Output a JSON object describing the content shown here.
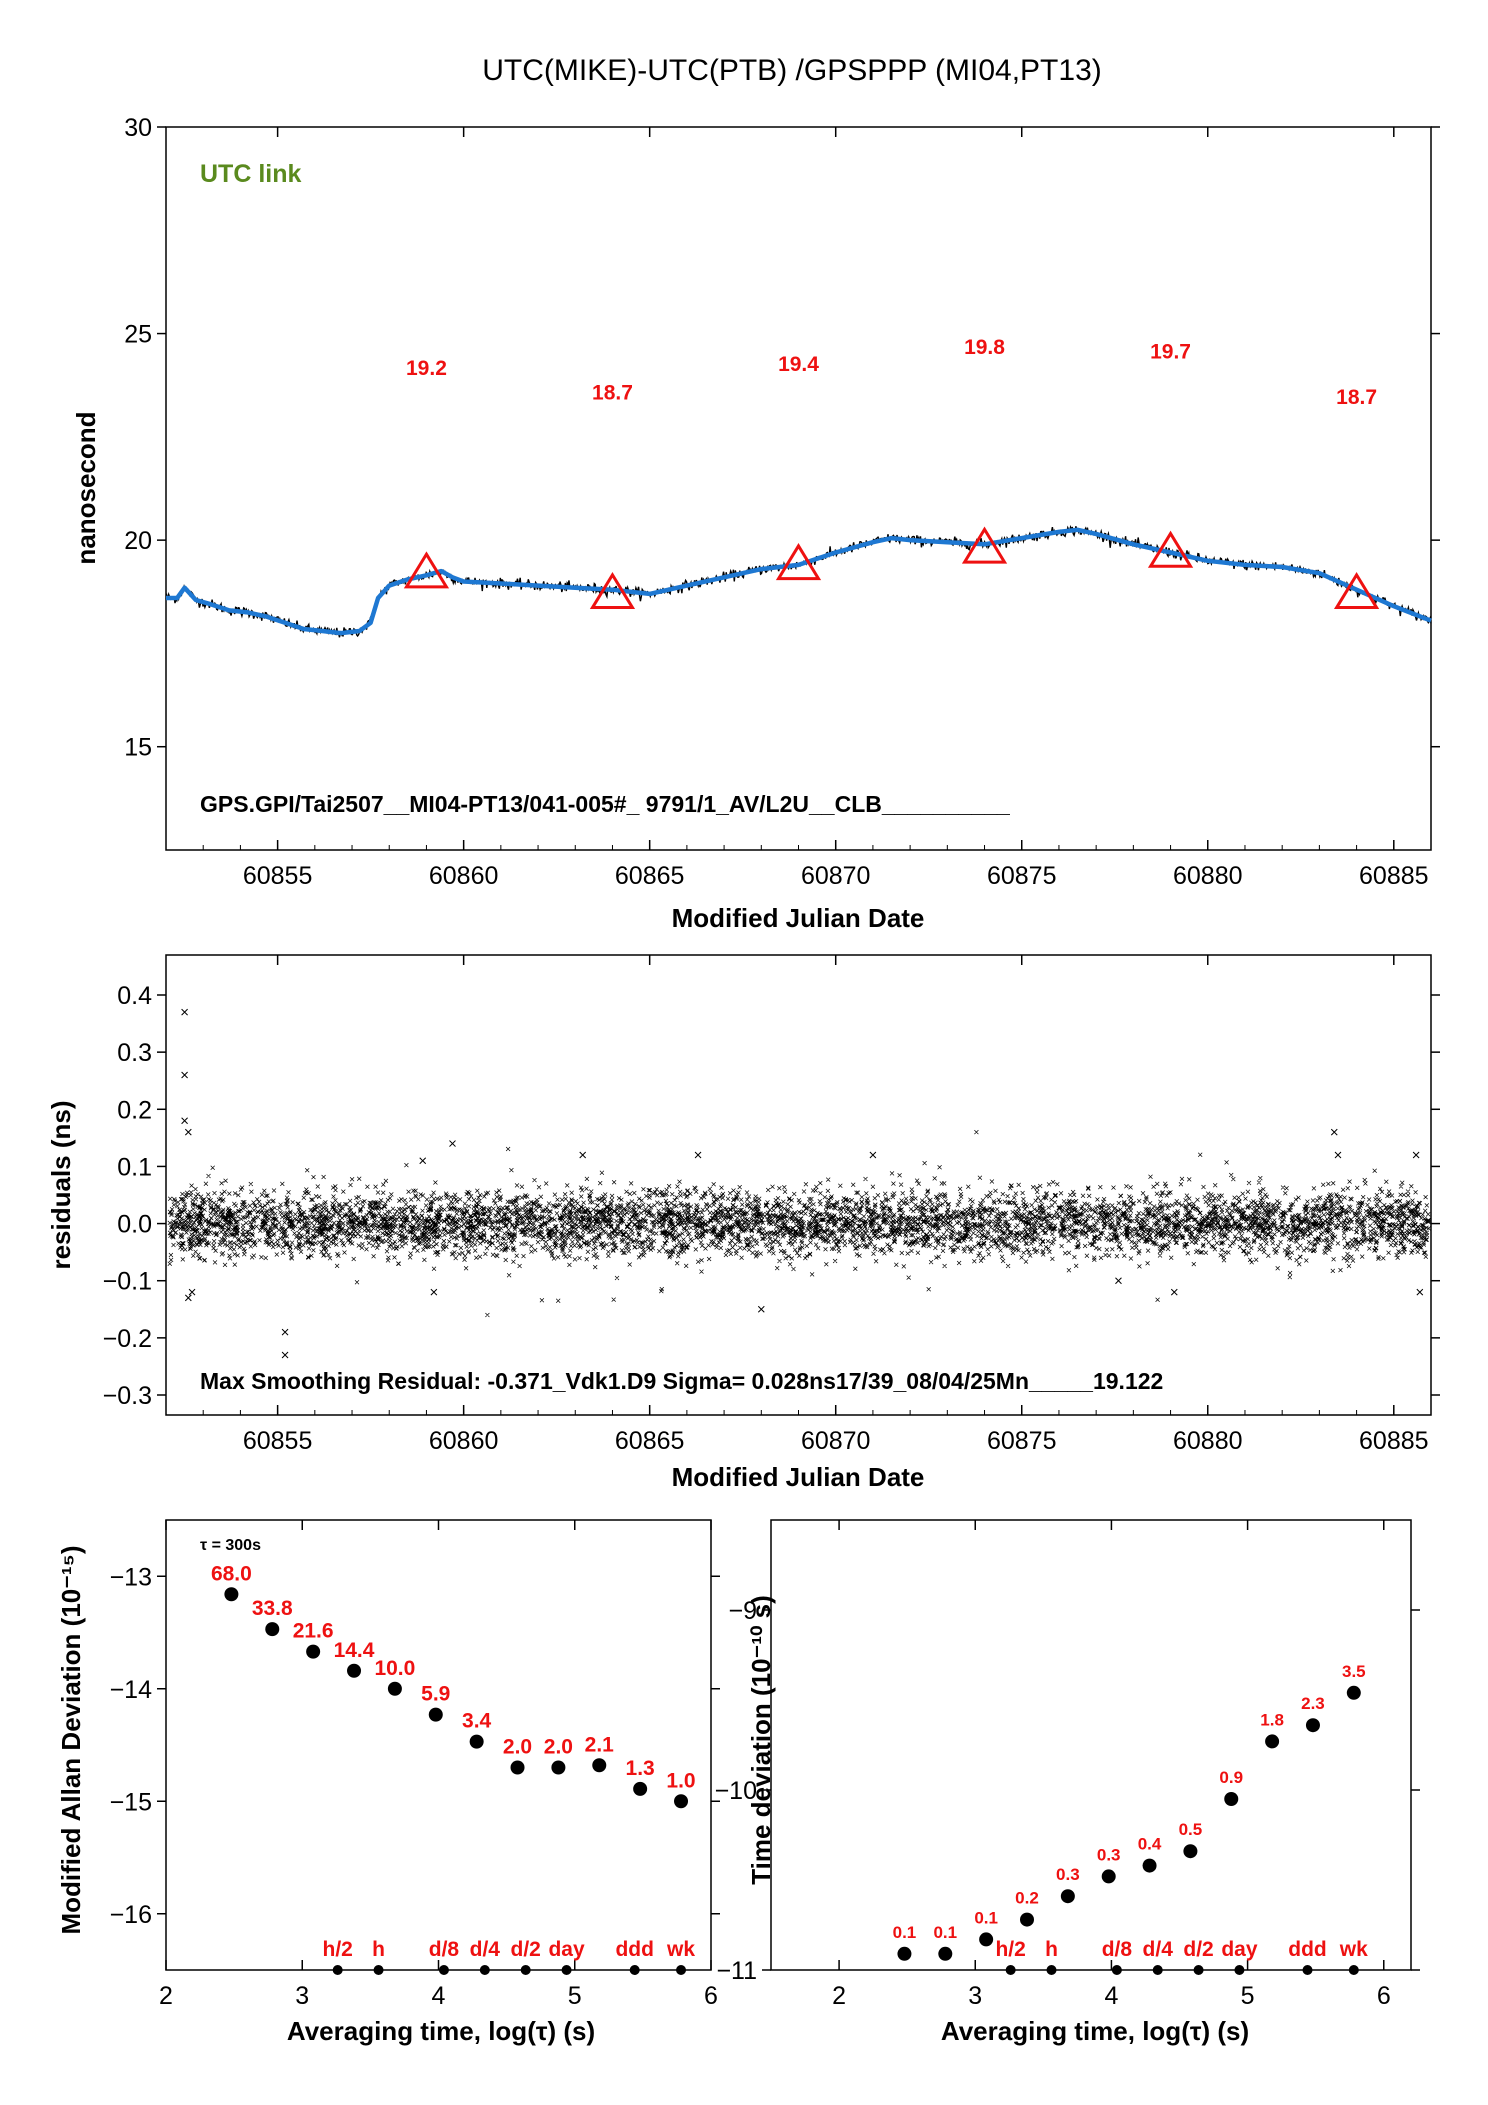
{
  "title": "UTC(MIKE)-UTC(PTB)  /GPSPPP  (MI04,PT13)",
  "chart_data": [
    {
      "id": "offset",
      "type": "line",
      "xlabel": "Modified Julian Date",
      "ylabel": "nanosecond",
      "xlim": [
        60852.0,
        60886.0
      ],
      "ylim": [
        12.5,
        30.0
      ],
      "xticks": [
        60855,
        60860,
        60865,
        60870,
        60875,
        60880,
        60885
      ],
      "yticks": [
        15,
        20,
        25,
        30
      ],
      "link_label": "UTC link",
      "series_color": "#1e78d2",
      "marker_color": "#ee1111",
      "curve": {
        "x": [
          60852.0,
          60852.3,
          60852.5,
          60852.8,
          60853.2,
          60853.7,
          60854.2,
          60854.7,
          60855.2,
          60855.7,
          60856.2,
          60856.7,
          60857.2,
          60857.5,
          60857.7,
          60858.0,
          60858.5,
          60859.0,
          60859.4,
          60859.7,
          60860.0,
          60861.0,
          60862.0,
          60863.0,
          60864.0,
          60865.0,
          60866.0,
          60867.0,
          60868.0,
          60869.0,
          60870.0,
          60871.0,
          60871.5,
          60872.0,
          60873.0,
          60874.0,
          60875.0,
          60876.0,
          60876.5,
          60877.0,
          60878.0,
          60879.0,
          60880.0,
          60881.0,
          60882.0,
          60883.0,
          60884.0,
          60885.0,
          60886.0
        ],
        "y": [
          18.6,
          18.6,
          18.85,
          18.55,
          18.45,
          18.3,
          18.25,
          18.15,
          18.0,
          17.85,
          17.8,
          17.75,
          17.8,
          18.0,
          18.6,
          18.9,
          19.05,
          19.15,
          19.25,
          19.1,
          19.0,
          18.95,
          18.9,
          18.85,
          18.8,
          18.7,
          18.9,
          19.1,
          19.3,
          19.4,
          19.7,
          19.95,
          20.05,
          20.0,
          19.95,
          19.9,
          20.05,
          20.2,
          20.25,
          20.15,
          19.9,
          19.7,
          19.5,
          19.4,
          19.35,
          19.2,
          18.8,
          18.4,
          18.05
        ]
      },
      "markers": {
        "x": [
          60859.0,
          60864.0,
          60869.0,
          60874.0,
          60879.0,
          60884.0
        ],
        "y": [
          19.2,
          18.7,
          19.4,
          19.8,
          19.7,
          18.7
        ],
        "labels": [
          "19.2",
          "18.7",
          "19.4",
          "19.8",
          "19.7",
          "18.7"
        ],
        "label_y": [
          24.0,
          23.4,
          24.1,
          24.5,
          24.4,
          23.3
        ]
      },
      "footnote": "GPS.GPI/Tai2507__MI04-PT13/041-005#_  9791/1_AV/L2U__CLB__________"
    },
    {
      "id": "residuals",
      "type": "scatter",
      "xlabel": "Modified Julian Date",
      "ylabel": "residuals (ns)",
      "xlim": [
        60852.0,
        60886.0
      ],
      "ylim": [
        -0.335,
        0.47
      ],
      "xticks": [
        60855,
        60860,
        60865,
        60870,
        60875,
        60880,
        60885
      ],
      "yticks": [
        -0.3,
        -0.2,
        -0.1,
        0.0,
        0.1,
        0.2,
        0.3,
        0.4
      ],
      "ytick_labels": [
        "−0.3",
        "−0.2",
        "−0.1",
        "0.0",
        "0.1",
        "0.2",
        "0.3",
        "0.4"
      ],
      "sigma_ns": 0.028,
      "outliers": {
        "x": [
          60852.5,
          60852.5,
          60852.5,
          60852.6,
          60852.6,
          60852.7,
          60855.2,
          60855.2,
          60858.9,
          60859.2,
          60859.7,
          60863.2,
          60866.3,
          60868.0,
          60871.0,
          60877.6,
          60879.1,
          60883.4,
          60883.5,
          60885.6,
          60885.7
        ],
        "y": [
          0.37,
          0.26,
          0.18,
          0.16,
          -0.13,
          -0.12,
          -0.19,
          -0.23,
          0.11,
          -0.12,
          0.14,
          0.12,
          0.12,
          -0.15,
          0.12,
          -0.1,
          -0.12,
          0.16,
          0.12,
          0.12,
          -0.12
        ]
      },
      "footnote": "Max Smoothing Residual: -0.371_Vdk1.D9  Sigma= 0.028ns17/39_08/04/25Mn_____19.122"
    },
    {
      "id": "mdev",
      "type": "scatter",
      "xlabel": "Averaging time, log(τ) (s)",
      "ylabel": "Modified Allan Deviation (10⁻¹⁵)",
      "xlim": [
        2,
        6
      ],
      "ylim": [
        -16.5,
        -12.5
      ],
      "xticks": [
        2,
        3,
        4,
        5,
        6
      ],
      "yticks": [
        -16,
        -15,
        -14,
        -13
      ],
      "ytick_labels": [
        "−16",
        "−15",
        "−14",
        "−13"
      ],
      "tau0_note": "τ = 300s",
      "x": [
        2.48,
        2.78,
        3.08,
        3.38,
        3.68,
        3.98,
        4.28,
        4.58,
        4.88,
        5.18,
        5.48,
        5.78
      ],
      "y": [
        -13.16,
        -13.47,
        -13.67,
        -13.84,
        -14.0,
        -14.23,
        -14.47,
        -14.7,
        -14.7,
        -14.68,
        -14.89,
        -15.0
      ],
      "labels": [
        "68.0",
        "33.8",
        "21.6",
        "14.4",
        "10.0",
        "5.9",
        "3.4",
        "2.0",
        "2.0",
        "2.1",
        "1.3",
        "1.0"
      ],
      "time_marks": {
        "x": [
          3.26,
          3.56,
          4.04,
          4.34,
          4.64,
          4.94,
          5.44,
          5.78
        ],
        "labels": [
          "h/2",
          "h",
          "d/8",
          "d/4",
          "d/2",
          "day",
          "ddd",
          "wk"
        ]
      }
    },
    {
      "id": "tdev",
      "type": "scatter",
      "xlabel": "Averaging time, log(τ) (s)",
      "ylabel": "Time deviation (10⁻¹⁰ s)",
      "xlim": [
        1.5,
        6.2
      ],
      "ylim": [
        -11.0,
        -8.5
      ],
      "xticks": [
        2,
        3,
        4,
        5,
        6
      ],
      "yticks": [
        -11,
        -10,
        -9
      ],
      "ytick_labels": [
        "−11",
        "−10",
        "−9"
      ],
      "x": [
        2.48,
        2.78,
        3.08,
        3.38,
        3.68,
        3.98,
        4.28,
        4.58,
        4.88,
        5.18,
        5.48,
        5.78
      ],
      "y": [
        -10.91,
        -10.91,
        -10.83,
        -10.72,
        -10.59,
        -10.48,
        -10.42,
        -10.34,
        -10.05,
        -9.73,
        -9.64,
        -9.46
      ],
      "labels": [
        "0.1",
        "0.1",
        "0.1",
        "0.2",
        "0.3",
        "0.3",
        "0.4",
        "0.5",
        "0.9",
        "1.8",
        "2.3",
        "3.5"
      ],
      "time_marks": {
        "x": [
          3.26,
          3.56,
          4.04,
          4.34,
          4.64,
          4.94,
          5.44,
          5.78
        ],
        "labels": [
          "h/2",
          "h",
          "d/8",
          "d/4",
          "d/2",
          "day",
          "ddd",
          "wk"
        ]
      }
    }
  ]
}
